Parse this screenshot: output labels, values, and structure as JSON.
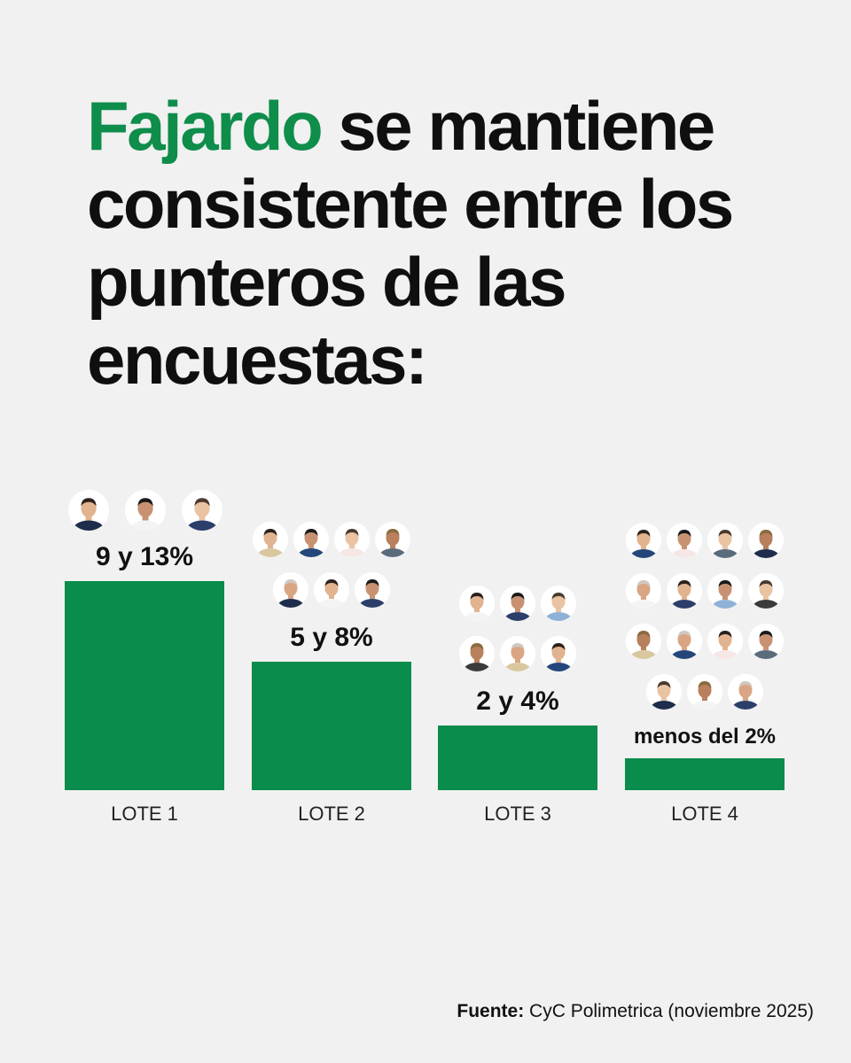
{
  "headline": {
    "highlight": "Fajardo",
    "rest": " se mantiene consistente entre los punteros de las encuestas:"
  },
  "colors": {
    "accent": "#0e8d4b",
    "bar": "#0a8c4c",
    "background": "#f1f1f1",
    "text": "#0f0f0f"
  },
  "chart_data": {
    "type": "bar",
    "categories": [
      "LOTE 1",
      "LOTE 2",
      "LOTE 3",
      "LOTE 4"
    ],
    "value_labels": [
      "9 y 13%",
      "5 y 8%",
      "2 y 4%",
      "menos del 2%"
    ],
    "ranges": [
      [
        9,
        13
      ],
      [
        5,
        8
      ],
      [
        2,
        4
      ],
      [
        0,
        2
      ]
    ],
    "values": [
      13,
      8,
      4,
      2
    ],
    "candidate_photos": [
      3,
      7,
      6,
      15
    ],
    "grid": false,
    "legend": "none"
  },
  "source": {
    "label": "Fuente:",
    "text": " CyC Polimetrica (noviembre 2025)"
  }
}
